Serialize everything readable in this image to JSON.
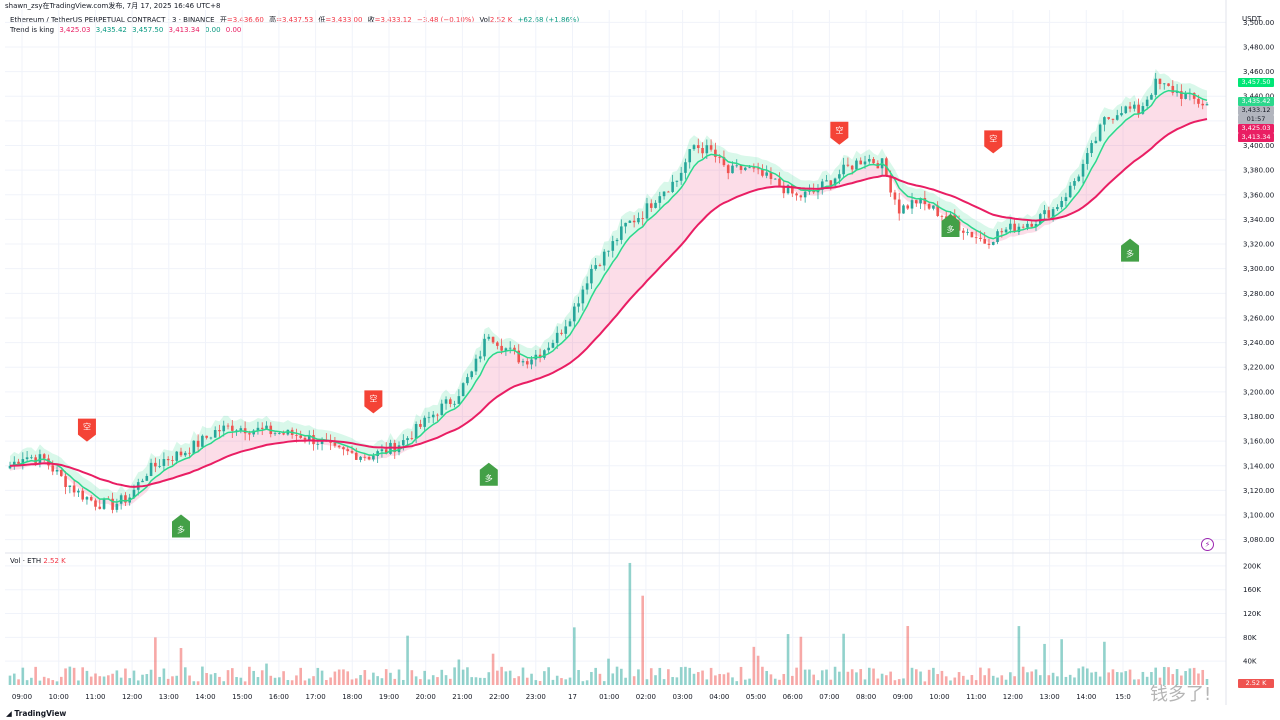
{
  "header": {
    "top_line": "shawn_zsy在TradingView.com发布, 7月 17, 2025 16:46 UTC+8",
    "symbol": "Ethereum / TetherUS PERPETUAL CONTRACT · 3 · BINANCE",
    "open_label": "开",
    "open": "=3,436.60",
    "high_label": "高",
    "high": "=3,437.53",
    "low_label": "低",
    "low": "=3,433.00",
    "close_label": "收",
    "close": "=3,433.12",
    "change": "−3.48 (−0.10%)",
    "vol_label": "Vol",
    "vol": "2.52 K",
    "change2": "+62.68 (+1.86%)",
    "indicator_name": "Trend is king",
    "ind_vals": [
      "3,425.03",
      "3,435.42",
      "3,457.50",
      "3,413.34",
      "0.00",
      "0.00"
    ]
  },
  "volume_pane": {
    "label": "Vol · ETH",
    "value": "2.52 K"
  },
  "footer": {
    "brand": "TradingView",
    "watermark": "钱多了!"
  },
  "colors": {
    "up": "#26a69a",
    "down": "#ef5350",
    "trend_green": "#2bd88c",
    "trend_pink": "#e91e63",
    "long_tag": "#43a047",
    "short_tag": "#f44336"
  },
  "chart_data": {
    "type": "candlestick",
    "currency": "USDT",
    "price_axis": {
      "ticks": [
        3080,
        3100,
        3120,
        3140,
        3160,
        3180,
        3200,
        3220,
        3240,
        3260,
        3280,
        3300,
        3320,
        3340,
        3360,
        3380,
        3400,
        3420,
        3440,
        3460,
        3480,
        3500
      ],
      "range": [
        3070,
        3510
      ]
    },
    "volume_axis": {
      "ticks": [
        40,
        80,
        120,
        160,
        200
      ],
      "unit": "K",
      "range": [
        0,
        215
      ]
    },
    "time_labels": [
      "09:00",
      "10:00",
      "11:00",
      "12:00",
      "13:00",
      "14:00",
      "15:00",
      "16:00",
      "17:00",
      "18:00",
      "19:00",
      "20:00",
      "21:00",
      "22:00",
      "23:00",
      "17",
      "01:00",
      "02:00",
      "03:00",
      "04:00",
      "05:00",
      "06:00",
      "07:00",
      "08:00",
      "09:00",
      "10:00",
      "11:00",
      "12:00",
      "13:00",
      "14:00",
      "15:0"
    ],
    "price_path": [
      [
        0,
        3140
      ],
      [
        3,
        3148
      ],
      [
        8,
        3145
      ],
      [
        12,
        3130
      ],
      [
        16,
        3118
      ],
      [
        20,
        3110
      ],
      [
        24,
        3108
      ],
      [
        28,
        3115
      ],
      [
        32,
        3135
      ],
      [
        36,
        3145
      ],
      [
        40,
        3150
      ],
      [
        44,
        3158
      ],
      [
        48,
        3168
      ],
      [
        52,
        3172
      ],
      [
        56,
        3170
      ],
      [
        60,
        3168
      ],
      [
        64,
        3166
      ],
      [
        68,
        3165
      ],
      [
        72,
        3160
      ],
      [
        76,
        3152
      ],
      [
        80,
        3150
      ],
      [
        84,
        3148
      ],
      [
        88,
        3152
      ],
      [
        92,
        3160
      ],
      [
        96,
        3172
      ],
      [
        100,
        3185
      ],
      [
        104,
        3195
      ],
      [
        108,
        3215
      ],
      [
        112,
        3248
      ],
      [
        116,
        3235
      ],
      [
        120,
        3225
      ],
      [
        124,
        3232
      ],
      [
        128,
        3245
      ],
      [
        132,
        3268
      ],
      [
        136,
        3300
      ],
      [
        140,
        3315
      ],
      [
        144,
        3335
      ],
      [
        148,
        3345
      ],
      [
        152,
        3362
      ],
      [
        156,
        3372
      ],
      [
        160,
        3400
      ],
      [
        164,
        3395
      ],
      [
        168,
        3378
      ],
      [
        172,
        3382
      ],
      [
        176,
        3375
      ],
      [
        180,
        3368
      ],
      [
        184,
        3358
      ],
      [
        188,
        3362
      ],
      [
        192,
        3372
      ],
      [
        196,
        3382
      ],
      [
        200,
        3390
      ],
      [
        204,
        3385
      ],
      [
        208,
        3348
      ],
      [
        212,
        3355
      ],
      [
        216,
        3348
      ],
      [
        220,
        3340
      ],
      [
        224,
        3330
      ],
      [
        228,
        3322
      ],
      [
        232,
        3330
      ],
      [
        236,
        3335
      ],
      [
        240,
        3340
      ],
      [
        244,
        3348
      ],
      [
        248,
        3365
      ],
      [
        252,
        3390
      ],
      [
        256,
        3420
      ],
      [
        260,
        3430
      ],
      [
        264,
        3428
      ],
      [
        268,
        3450
      ],
      [
        272,
        3445
      ],
      [
        276,
        3438
      ],
      [
        280,
        3433
      ]
    ],
    "bars": 281,
    "last_price": "3,433.12",
    "countdown": "01:57",
    "price_labels": [
      {
        "value": "3,457.50",
        "color": "#00e676"
      },
      {
        "value": "3,435.42",
        "color": "#2bd88c"
      },
      {
        "value": "3,433.12",
        "color": "#b2b5be"
      },
      {
        "value": "01:57",
        "color": "#b2b5be"
      },
      {
        "value": "3,425.03",
        "color": "#e91e63"
      },
      {
        "value": "3,413.34",
        "color": "#e91e63"
      }
    ],
    "signals": [
      {
        "type": "short",
        "text": "空",
        "bar": 18,
        "price": 3162
      },
      {
        "type": "long",
        "text": "多",
        "bar": 40,
        "price": 3098
      },
      {
        "type": "short",
        "text": "空",
        "bar": 85,
        "price": 3185
      },
      {
        "type": "long",
        "text": "多",
        "bar": 112,
        "price": 3140
      },
      {
        "type": "short",
        "text": "空",
        "bar": 194,
        "price": 3403
      },
      {
        "type": "long",
        "text": "多",
        "bar": 220,
        "price": 3342
      },
      {
        "type": "short",
        "text": "空",
        "bar": 230,
        "price": 3396
      },
      {
        "type": "long",
        "text": "多",
        "bar": 262,
        "price": 3322
      }
    ]
  }
}
